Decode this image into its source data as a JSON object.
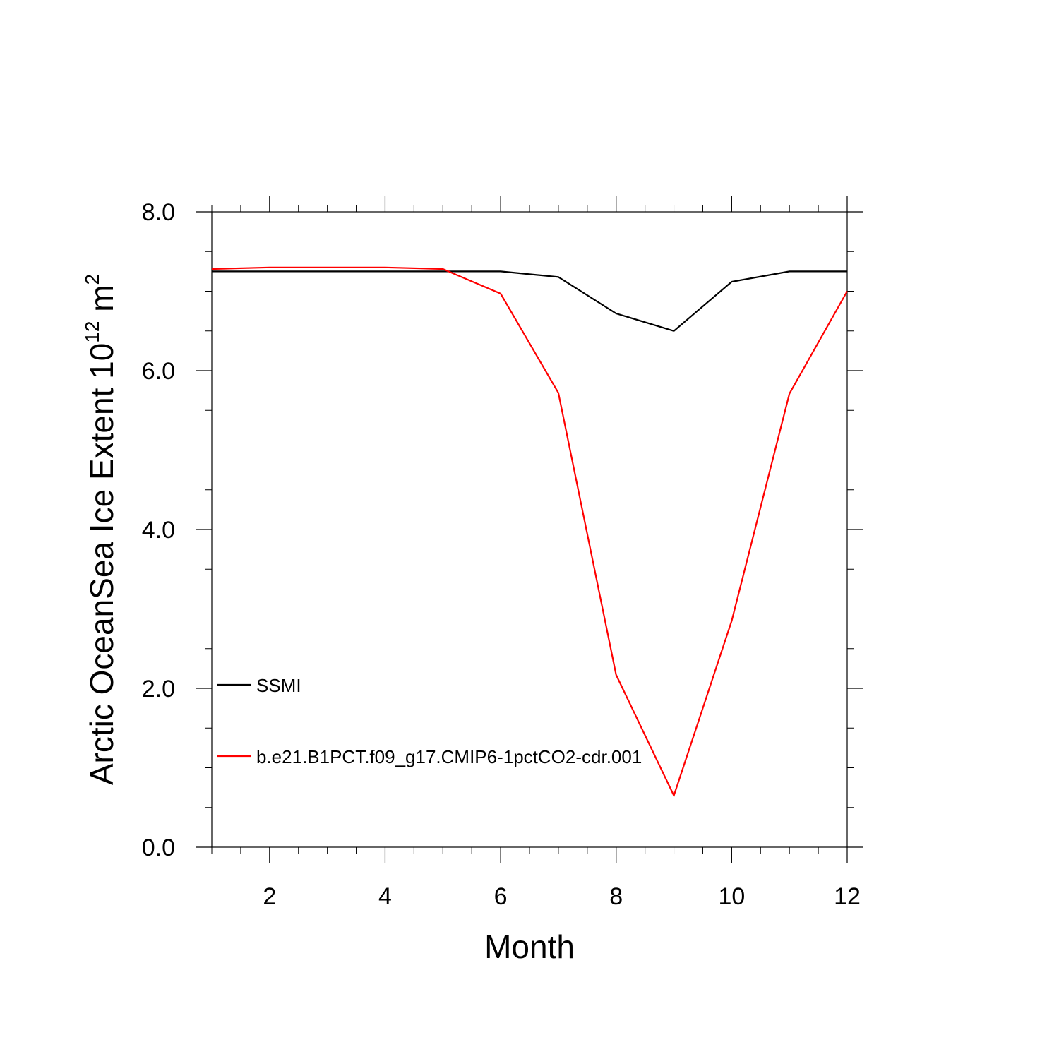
{
  "chart_data": {
    "type": "line",
    "xlabel": "Month",
    "ylabel_main": "Arctic OceanSea Ice Extent 10",
    "ylabel_exp": "12",
    "ylabel_unit": " m",
    "ylabel_unit_exp": "2",
    "xlim": [
      1,
      12
    ],
    "ylim": [
      0,
      8
    ],
    "x_ticks": [
      2,
      4,
      6,
      8,
      10,
      12
    ],
    "x_tick_labels": [
      "2",
      "4",
      "6",
      "8",
      "10",
      "12"
    ],
    "y_ticks": [
      0,
      2,
      4,
      6,
      8
    ],
    "y_tick_labels": [
      "0.0",
      "2.0",
      "4.0",
      "6.0",
      "8.0"
    ],
    "x": [
      1,
      2,
      3,
      4,
      5,
      6,
      7,
      8,
      9,
      10,
      11,
      12
    ],
    "series": [
      {
        "name": "SSMI",
        "color": "#000000",
        "values": [
          7.25,
          7.25,
          7.25,
          7.25,
          7.25,
          7.25,
          7.18,
          6.72,
          6.5,
          7.12,
          7.25,
          7.25
        ]
      },
      {
        "name": "b.e21.B1PCT.f09_g17.CMIP6-1pctCO2-cdr.001",
        "color": "#ff0000",
        "values": [
          7.28,
          7.3,
          7.3,
          7.3,
          7.28,
          6.97,
          5.72,
          2.17,
          0.65,
          2.85,
          5.71,
          7.0
        ]
      }
    ],
    "legend_placement": "lower-left inside"
  }
}
